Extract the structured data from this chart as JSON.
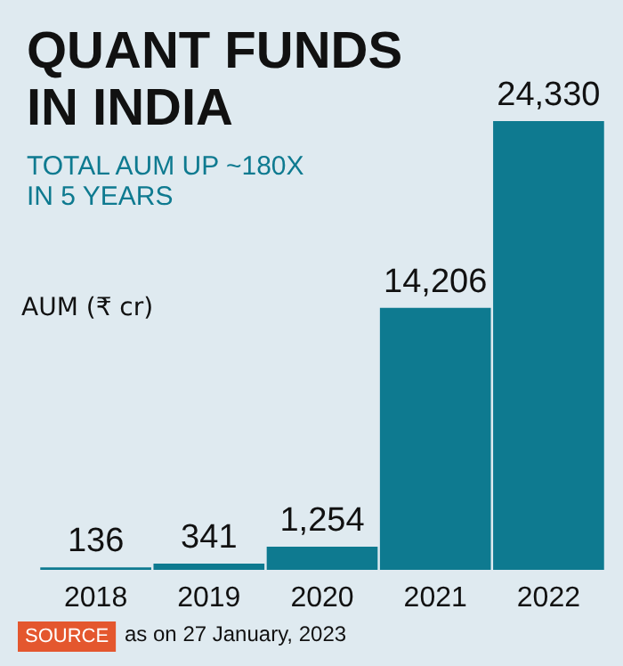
{
  "chart_data": {
    "type": "bar",
    "title": "QUANT FUNDS\nIN INDIA",
    "subtitle": "TOTAL AUM UP ~180X\nIN 5 YEARS",
    "ylabel": "AUM (₹ cr)",
    "categories": [
      "2018",
      "2019",
      "2020",
      "2021",
      "2022"
    ],
    "values": [
      136,
      341,
      1254,
      14206,
      24330
    ],
    "color": "#0e7a90",
    "value_labels": [
      "136",
      "341",
      "1,254",
      "14,206",
      "24,330"
    ],
    "annotations": [
      "SOURCE",
      "as on 27 January, 2023"
    ]
  }
}
